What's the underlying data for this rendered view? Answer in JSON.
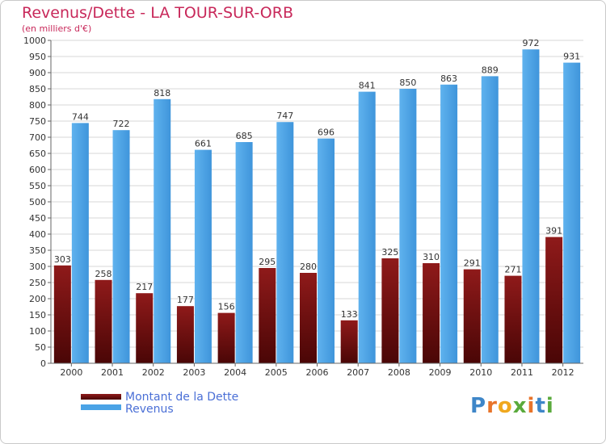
{
  "title": "Revenus/Dette - LA TOUR-SUR-ORB",
  "subtitle": "(en milliers d'€)",
  "logo_text": "Proxiti",
  "colors": {
    "title": "#c8285a",
    "debt": "#7a1010",
    "revenue": "#4aa3e6",
    "legend_text": "#4a6fd6"
  },
  "chart_data": {
    "type": "bar",
    "title": "Revenus/Dette - LA TOUR-SUR-ORB",
    "subtitle": "(en milliers d'€)",
    "categories": [
      "2000",
      "2001",
      "2002",
      "2003",
      "2004",
      "2005",
      "2006",
      "2007",
      "2008",
      "2009",
      "2010",
      "2011",
      "2012"
    ],
    "series": [
      {
        "name": "Montant de la Dette",
        "values": [
          303,
          258,
          217,
          177,
          156,
          295,
          280,
          133,
          325,
          310,
          291,
          271,
          391
        ]
      },
      {
        "name": "Revenus",
        "values": [
          744,
          722,
          818,
          661,
          685,
          747,
          696,
          841,
          850,
          863,
          889,
          972,
          931
        ]
      }
    ],
    "ylim": [
      0,
      1000
    ],
    "ytick_step": 50,
    "grid": true,
    "legend_placement": "bottom-left"
  }
}
